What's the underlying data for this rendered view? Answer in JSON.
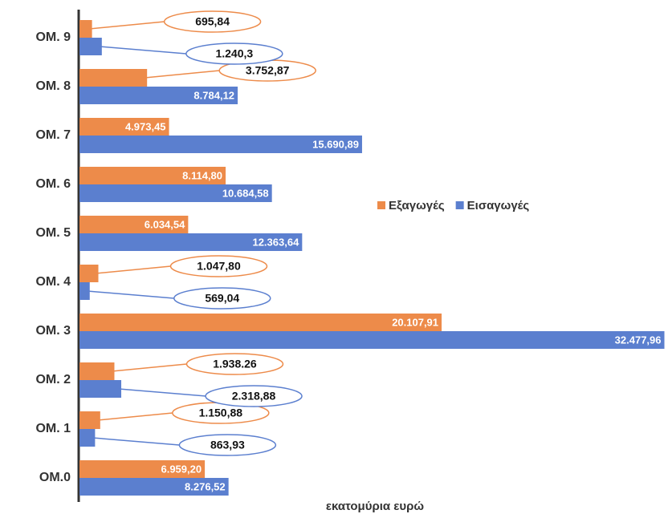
{
  "chart_data": {
    "type": "barh",
    "categories": [
      "ΟΜ.0",
      "ΟΜ. 1",
      "ΟΜ. 2",
      "ΟΜ. 3",
      "ΟΜ. 4",
      "ΟΜ. 5",
      "ΟΜ. 6",
      "ΟΜ. 7",
      "ΟΜ. 8",
      "ΟΜ. 9"
    ],
    "series": [
      {
        "name": "Εξαγωγές",
        "color": "#ed8b4a",
        "values": [
          6959.2,
          1150.88,
          1938.26,
          20107.91,
          1047.8,
          6034.54,
          8114.8,
          4973.45,
          3752.87,
          695.84
        ],
        "value_labels": [
          "6.959,20",
          "1.150,88",
          "1.938.26",
          "20.107,91",
          "1.047,80",
          "6.034,54",
          "8.114,80",
          "4.973,45",
          "3.752,87",
          "695,84"
        ]
      },
      {
        "name": "Εισαγωγές",
        "color": "#5b7fcf",
        "values": [
          8276.52,
          863.93,
          2318.88,
          32477.96,
          569.04,
          12363.64,
          10684.58,
          15690.89,
          8784.12,
          1240.3
        ],
        "value_labels": [
          "8.276,52",
          "863,93",
          "2.318,88",
          "32.477,96",
          "569,04",
          "12.363,64",
          "10.684,58",
          "15.690,89",
          "8.784,12",
          "1.240,3"
        ]
      }
    ],
    "xlabel": "εκατομύρια ευρώ",
    "xlim": [
      0,
      32500
    ],
    "legend": "right"
  }
}
